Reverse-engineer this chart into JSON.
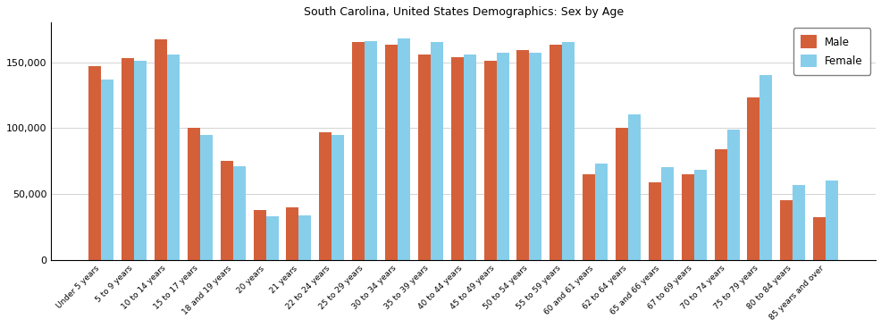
{
  "title": "South Carolina, United States Demographics: Sex by Age",
  "categories": [
    "Under 5 years",
    "5 to 9 years",
    "10 to 14 years",
    "15 to 17 years",
    "18 and 19 years",
    "20 years",
    "21 years",
    "22 to 24 years",
    "25 to 29 years",
    "30 to 34 years",
    "35 to 39 years",
    "40 to 44 years",
    "45 to 49 years",
    "50 to 54 years",
    "55 to 59 years",
    "60 and 61 years",
    "62 to 64 years",
    "65 and 66 years",
    "67 to 69 years",
    "70 to 74 years",
    "75 to 79 years",
    "80 to 84 years",
    "85 years and over"
  ],
  "male": [
    147000,
    153000,
    167000,
    100000,
    75000,
    38000,
    40000,
    97000,
    165000,
    163000,
    156000,
    154000,
    151000,
    159000,
    163000,
    65000,
    100000,
    59000,
    65000,
    84000,
    123000,
    45000,
    32000
  ],
  "female": [
    137000,
    151000,
    156000,
    95000,
    71000,
    33000,
    34000,
    95000,
    166000,
    168000,
    165000,
    156000,
    157000,
    157000,
    165000,
    73000,
    110000,
    70000,
    68000,
    99000,
    140000,
    57000,
    60000
  ],
  "male_color": "#d4603a",
  "female_color": "#87ceeb",
  "ylim": [
    0,
    180000
  ],
  "yticks": [
    0,
    50000,
    100000,
    150000
  ],
  "legend_labels": [
    "Male",
    "Female"
  ],
  "background_color": "#ffffff",
  "figsize": [
    9.87,
    3.67
  ],
  "dpi": 100
}
